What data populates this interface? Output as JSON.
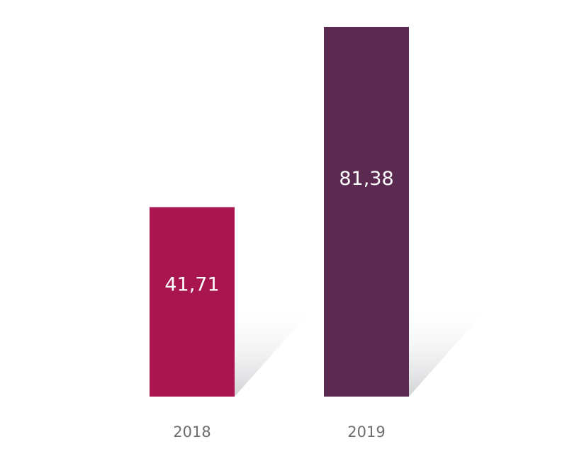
{
  "chart_data": {
    "type": "bar",
    "categories": [
      "2018",
      "2019"
    ],
    "values": [
      41.71,
      81.38
    ],
    "value_labels": [
      "41,71",
      "81,38"
    ],
    "colors": [
      "#a8154f",
      "#5a2a51"
    ],
    "ylim": [
      0,
      90
    ],
    "grid": false,
    "legend": "none"
  }
}
